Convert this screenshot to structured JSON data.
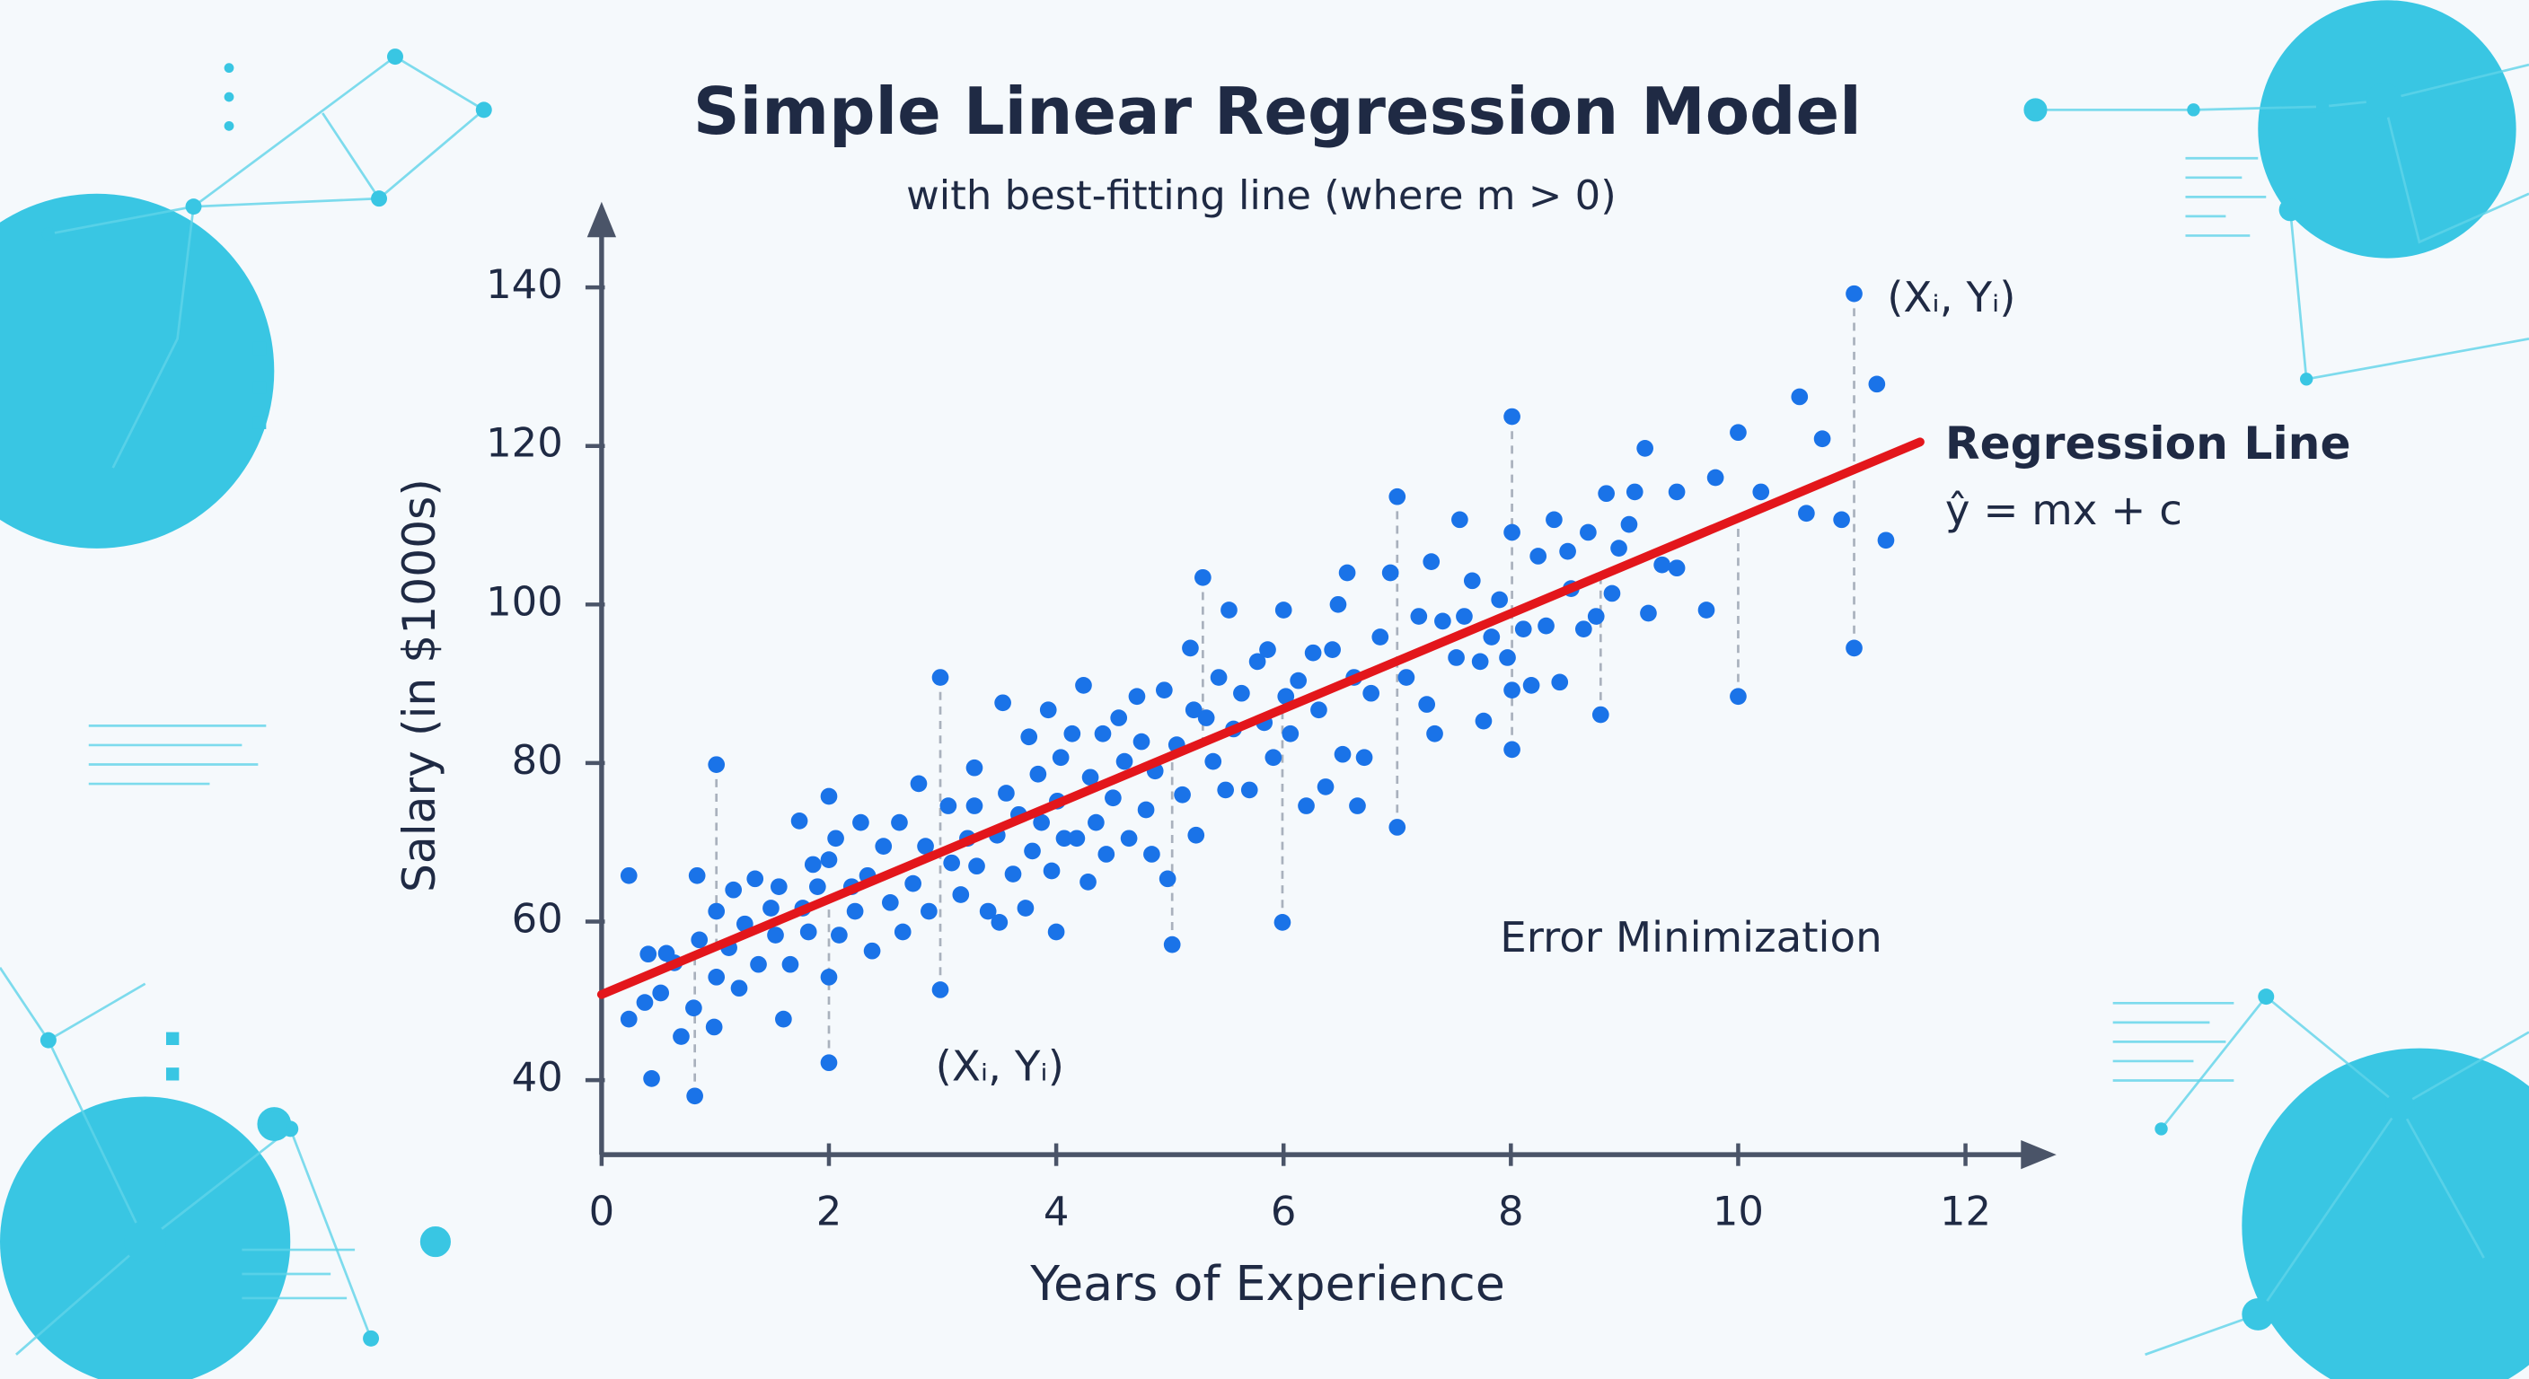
{
  "chart_data": {
    "type": "scatter",
    "title": "Simple Linear Regression Model",
    "subtitle": "with best-fitting line (where m > 0)",
    "x_label": "Years of Experience",
    "y_label": "Salary (in $1000s)",
    "xlim": [
      0,
      12.8
    ],
    "ylim": [
      30.6,
      150.8
    ],
    "xticks": [
      0,
      2,
      4,
      6,
      8,
      10,
      12
    ],
    "yticks": [
      40,
      60,
      80,
      100,
      120,
      140
    ],
    "grid": false,
    "series": [
      {
        "type": "scatter",
        "color": "#1a73e8",
        "x": [
          0.24,
          0.24,
          0.38,
          0.44,
          0.41,
          0.57,
          0.52,
          0.64,
          0.7,
          0.82,
          0.84,
          0.86,
          0.81,
          1.01,
          1.01,
          1.01,
          0.99,
          1.16,
          1.12,
          1.21,
          1.26,
          1.35,
          1.38,
          1.49,
          1.53,
          1.6,
          1.56,
          1.66,
          1.74,
          1.77,
          1.82,
          1.86,
          1.9,
          2.0,
          2.0,
          2.0,
          2.0,
          2.06,
          2.09,
          2.2,
          2.23,
          2.28,
          2.34,
          2.38,
          2.48,
          2.54,
          2.62,
          2.65,
          2.74,
          2.79,
          2.85,
          2.88,
          2.98,
          2.98,
          3.05,
          3.08,
          3.16,
          3.22,
          3.28,
          3.28,
          3.3,
          3.4,
          3.48,
          3.5,
          3.53,
          3.56,
          3.62,
          3.67,
          3.73,
          3.76,
          3.79,
          3.84,
          3.87,
          3.93,
          3.96,
          4.0,
          4.01,
          4.04,
          4.07,
          4.14,
          4.18,
          4.24,
          4.28,
          4.3,
          4.35,
          4.41,
          4.44,
          4.5,
          4.55,
          4.6,
          4.64,
          4.71,
          4.75,
          4.79,
          4.84,
          4.87,
          4.95,
          4.98,
          5.02,
          5.06,
          5.11,
          5.18,
          5.21,
          5.23,
          5.29,
          5.32,
          5.38,
          5.43,
          5.49,
          5.52,
          5.56,
          5.63,
          5.7,
          5.77,
          5.83,
          5.86,
          5.91,
          5.99,
          6.0,
          6.02,
          6.06,
          6.13,
          6.2,
          6.26,
          6.31,
          6.37,
          6.43,
          6.48,
          6.52,
          6.56,
          6.62,
          6.65,
          6.71,
          6.77,
          6.85,
          6.94,
          7.0,
          7.0,
          7.08,
          7.19,
          7.26,
          7.3,
          7.33,
          7.4,
          7.52,
          7.55,
          7.59,
          7.66,
          7.73,
          7.76,
          7.83,
          7.9,
          7.97,
          8.01,
          8.01,
          8.01,
          8.01,
          8.11,
          8.18,
          8.24,
          8.31,
          8.38,
          8.43,
          8.5,
          8.53,
          8.64,
          8.68,
          8.75,
          8.79,
          8.84,
          8.89,
          8.95,
          9.04,
          9.09,
          9.18,
          9.21,
          9.33,
          9.46,
          9.46,
          9.72,
          9.8,
          10.0,
          10.0,
          10.2,
          10.54,
          10.6,
          10.74,
          10.91,
          11.02,
          11.02,
          11.22,
          11.3
        ],
        "values": [
          65.8,
          47.7,
          49.8,
          40.2,
          55.9,
          56,
          51,
          54.8,
          45.5,
          38,
          65.8,
          57.7,
          49.1,
          79.8,
          61.3,
          53,
          46.7,
          64,
          56.7,
          51.6,
          59.7,
          65.4,
          54.6,
          61.7,
          58.3,
          47.7,
          64.4,
          54.6,
          72.7,
          61.7,
          58.7,
          67.2,
          64.4,
          75.8,
          67.8,
          53,
          42.2,
          70.5,
          58.3,
          64.4,
          61.3,
          72.5,
          65.8,
          56.3,
          69.5,
          62.4,
          72.5,
          58.7,
          64.8,
          77.4,
          69.5,
          61.3,
          90.8,
          51.4,
          74.6,
          67.4,
          63.4,
          70.5,
          79.4,
          74.6,
          67,
          61.3,
          70.9,
          59.9,
          87.6,
          76.2,
          66,
          73.5,
          61.7,
          83.3,
          68.9,
          78.6,
          72.5,
          86.7,
          66.4,
          58.7,
          75.2,
          80.7,
          70.5,
          83.7,
          70.5,
          89.8,
          65,
          78.2,
          72.5,
          83.7,
          68.5,
          75.6,
          85.7,
          80.2,
          70.5,
          88.4,
          82.7,
          74.1,
          68.5,
          79,
          89.2,
          65.4,
          57.1,
          82.3,
          76,
          94.5,
          86.7,
          70.9,
          103.4,
          85.7,
          80.2,
          90.8,
          76.6,
          99.3,
          84.3,
          88.8,
          76.6,
          92.8,
          85.1,
          94.3,
          80.7,
          59.9,
          99.3,
          88.4,
          83.7,
          90.4,
          74.6,
          93.9,
          86.7,
          77,
          94.3,
          100,
          81.1,
          104,
          90.8,
          74.6,
          80.7,
          88.8,
          95.9,
          104,
          71.9,
          113.6,
          90.8,
          98.5,
          87.4,
          105.4,
          83.7,
          97.9,
          93.3,
          110.7,
          98.5,
          103,
          92.8,
          85.3,
          95.9,
          100.6,
          93.3,
          81.7,
          109.1,
          123.7,
          89.2,
          96.9,
          89.8,
          106.1,
          97.3,
          110.7,
          90.2,
          106.7,
          102,
          96.9,
          109.1,
          98.5,
          86.1,
          114,
          101.4,
          107.1,
          110.1,
          114.2,
          119.7,
          98.9,
          105,
          114.2,
          104.6,
          99.3,
          116,
          121.7,
          88.4,
          114.2,
          126.2,
          111.5,
          120.9,
          110.7,
          139.2,
          94.5,
          127.8,
          108.1
        ]
      },
      {
        "type": "line",
        "name": "Regression Line",
        "equation": "ŷ = mx + c",
        "color": "#e3161b",
        "x": [
          0,
          11.6
        ],
        "values": [
          50.8,
          120.5
        ]
      }
    ],
    "annotations": [
      "(Xᵢ, Yᵢ)",
      "(Xᵢ, Yᵢ)",
      "Error Minimization"
    ]
  }
}
